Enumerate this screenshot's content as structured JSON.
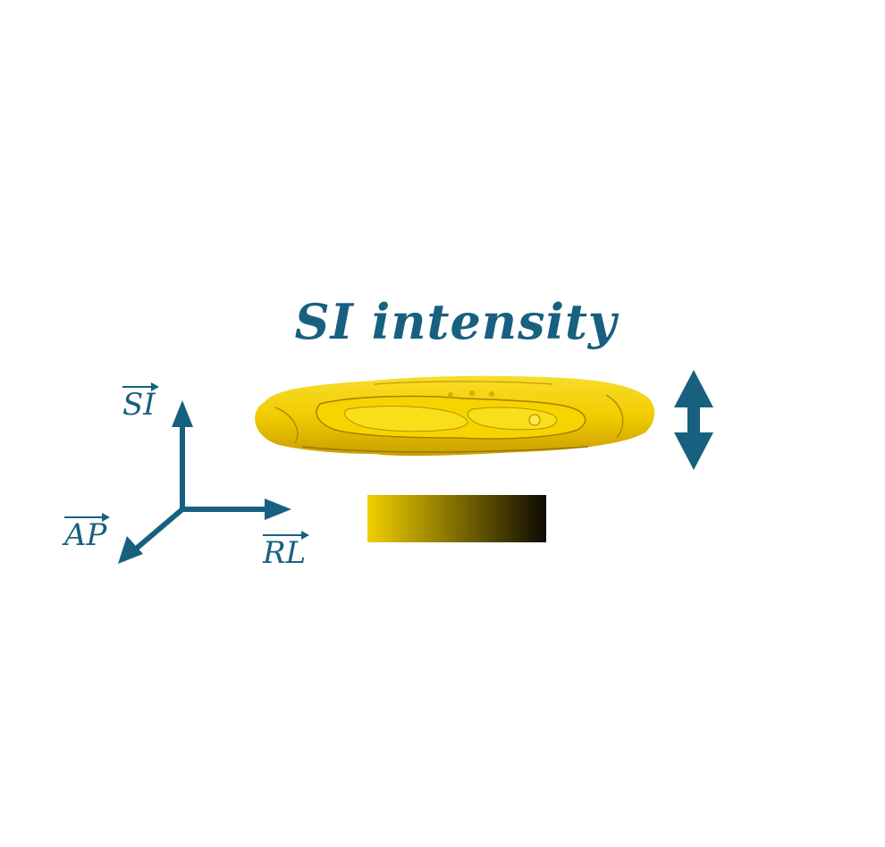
{
  "title": "SI intensity",
  "axes": {
    "si": "SI",
    "ap": "AP",
    "rl": "RL"
  },
  "colors": {
    "accent": "#17607f",
    "surface": "#f2ce00",
    "surface_dark": "#b88f00",
    "colorbar_start": "#f0cf00",
    "colorbar_end": "#0d0a02"
  },
  "icons": {
    "motion_arrow": "double-vertical-arrow-icon",
    "axes": "coordinate-axes-icon"
  }
}
